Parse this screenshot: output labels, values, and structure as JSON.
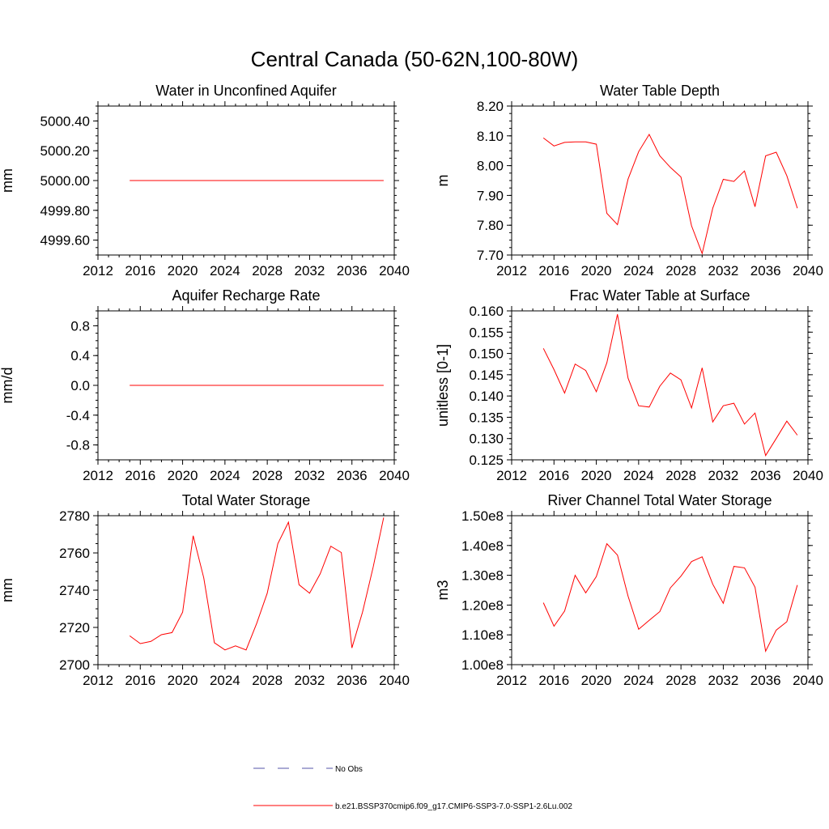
{
  "figure_title": "Central Canada (50-62N,100-80W)",
  "legend": {
    "obs_label": "No Obs",
    "model_label": "b.e21.BSSP370cmip6.f09_g17.CMIP6-SSP3-7.0-SSP1-2.6Lu.002",
    "obs_color": "#5555aa",
    "model_color": "#ff0000"
  },
  "chart_data": [
    {
      "type": "line",
      "title": "Water in Unconfined Aquifer",
      "ylabel": "mm",
      "xlim": [
        2012,
        2040
      ],
      "xticks": [
        2012,
        2016,
        2020,
        2024,
        2028,
        2032,
        2036,
        2040
      ],
      "ylim": [
        4999.5,
        5000.5
      ],
      "yticks": [
        4999.6,
        4999.8,
        5000.0,
        5000.2,
        5000.4
      ],
      "ytick_labels": [
        "4999.60",
        "4999.80",
        "5000.00",
        "5000.20",
        "5000.40"
      ],
      "x": [
        2015,
        2016,
        2017,
        2018,
        2019,
        2020,
        2021,
        2022,
        2023,
        2024,
        2025,
        2026,
        2027,
        2028,
        2029,
        2030,
        2031,
        2032,
        2033,
        2034,
        2035,
        2036,
        2037,
        2038,
        2039
      ],
      "series": [
        {
          "values": [
            5000,
            5000,
            5000,
            5000,
            5000,
            5000,
            5000,
            5000,
            5000,
            5000,
            5000,
            5000,
            5000,
            5000,
            5000,
            5000,
            5000,
            5000,
            5000,
            5000,
            5000,
            5000,
            5000,
            5000,
            5000
          ]
        }
      ]
    },
    {
      "type": "line",
      "title": "Water Table Depth",
      "ylabel": "m",
      "xlim": [
        2012,
        2040
      ],
      "xticks": [
        2012,
        2016,
        2020,
        2024,
        2028,
        2032,
        2036,
        2040
      ],
      "ylim": [
        7.7,
        8.2
      ],
      "yticks": [
        7.7,
        7.8,
        7.9,
        8.0,
        8.1,
        8.2
      ],
      "ytick_labels": [
        "7.70",
        "7.80",
        "7.90",
        "8.00",
        "8.10",
        "8.20"
      ],
      "x": [
        2015,
        2016,
        2017,
        2018,
        2019,
        2020,
        2021,
        2022,
        2023,
        2024,
        2025,
        2026,
        2027,
        2028,
        2029,
        2030,
        2031,
        2032,
        2033,
        2034,
        2035,
        2036,
        2037,
        2038,
        2039
      ],
      "series": [
        {
          "values": [
            8.093,
            8.066,
            8.078,
            8.08,
            8.08,
            8.072,
            7.84,
            7.802,
            7.955,
            8.047,
            8.105,
            8.033,
            7.994,
            7.962,
            7.798,
            7.705,
            7.857,
            7.954,
            7.947,
            7.982,
            7.862,
            8.033,
            8.045,
            7.966,
            7.857
          ]
        }
      ]
    },
    {
      "type": "line",
      "title": "Aquifer Recharge Rate",
      "ylabel": "mm/d",
      "xlim": [
        2012,
        2040
      ],
      "xticks": [
        2012,
        2016,
        2020,
        2024,
        2028,
        2032,
        2036,
        2040
      ],
      "ylim": [
        -1.0,
        1.0
      ],
      "yticks": [
        -0.8,
        -0.4,
        0.0,
        0.4,
        0.8
      ],
      "ytick_labels": [
        "-0.8",
        "-0.4",
        "0.0",
        "0.4",
        "0.8"
      ],
      "x": [
        2015,
        2016,
        2017,
        2018,
        2019,
        2020,
        2021,
        2022,
        2023,
        2024,
        2025,
        2026,
        2027,
        2028,
        2029,
        2030,
        2031,
        2032,
        2033,
        2034,
        2035,
        2036,
        2037,
        2038,
        2039
      ],
      "series": [
        {
          "values": [
            0,
            0,
            0,
            0,
            0,
            0,
            0,
            0,
            0,
            0,
            0,
            0,
            0,
            0,
            0,
            0,
            0,
            0,
            0,
            0,
            0,
            0,
            0,
            0,
            0
          ]
        }
      ]
    },
    {
      "type": "line",
      "title": "Frac Water Table at Surface",
      "ylabel": "unitless [0-1]",
      "xlim": [
        2012,
        2040
      ],
      "xticks": [
        2012,
        2016,
        2020,
        2024,
        2028,
        2032,
        2036,
        2040
      ],
      "ylim": [
        0.125,
        0.16
      ],
      "yticks": [
        0.125,
        0.13,
        0.135,
        0.14,
        0.145,
        0.15,
        0.155,
        0.16
      ],
      "ytick_labels": [
        "0.125",
        "0.130",
        "0.135",
        "0.140",
        "0.145",
        "0.150",
        "0.155",
        "0.160"
      ],
      "x": [
        2015,
        2016,
        2017,
        2018,
        2019,
        2020,
        2021,
        2022,
        2023,
        2024,
        2025,
        2026,
        2027,
        2028,
        2029,
        2030,
        2031,
        2032,
        2033,
        2034,
        2035,
        2036,
        2037,
        2038,
        2039
      ],
      "series": [
        {
          "values": [
            0.1512,
            0.1462,
            0.1407,
            0.1475,
            0.146,
            0.141,
            0.1478,
            0.1592,
            0.1442,
            0.1377,
            0.1374,
            0.1423,
            0.1454,
            0.1438,
            0.1372,
            0.1466,
            0.1339,
            0.1377,
            0.1383,
            0.1334,
            0.136,
            0.126,
            0.13,
            0.1341,
            0.1308
          ]
        }
      ]
    },
    {
      "type": "line",
      "title": "Total Water Storage",
      "ylabel": "mm",
      "xlim": [
        2012,
        2040
      ],
      "xticks": [
        2012,
        2016,
        2020,
        2024,
        2028,
        2032,
        2036,
        2040
      ],
      "ylim": [
        2700,
        2780
      ],
      "yticks": [
        2700,
        2720,
        2740,
        2760,
        2780
      ],
      "ytick_labels": [
        "2700",
        "2720",
        "2740",
        "2760",
        "2780"
      ],
      "x": [
        2015,
        2016,
        2017,
        2018,
        2019,
        2020,
        2021,
        2022,
        2023,
        2024,
        2025,
        2026,
        2027,
        2028,
        2029,
        2030,
        2031,
        2032,
        2033,
        2034,
        2035,
        2036,
        2037,
        2038,
        2039
      ],
      "series": [
        {
          "values": [
            2715.5,
            2711.3,
            2712.5,
            2716.1,
            2717.2,
            2728.2,
            2769.2,
            2746.6,
            2711.8,
            2707.9,
            2710.1,
            2707.9,
            2722.2,
            2738.4,
            2765.0,
            2776.5,
            2742.9,
            2738.4,
            2748.8,
            2763.6,
            2760.2,
            2709.0,
            2728.2,
            2752.3,
            2779.0
          ]
        }
      ]
    },
    {
      "type": "line",
      "title": "River Channel Total Water Storage",
      "ylabel": "m3",
      "xlim": [
        2012,
        2040
      ],
      "xticks": [
        2012,
        2016,
        2020,
        2024,
        2028,
        2032,
        2036,
        2040
      ],
      "ylim": [
        100000000,
        150000000
      ],
      "yticks": [
        100000000,
        110000000,
        120000000,
        130000000,
        140000000,
        150000000
      ],
      "ytick_labels": [
        "1.00e8",
        "1.10e8",
        "1.20e8",
        "1.30e8",
        "1.40e8",
        "1.50e8"
      ],
      "x": [
        2015,
        2016,
        2017,
        2018,
        2019,
        2020,
        2021,
        2022,
        2023,
        2024,
        2025,
        2026,
        2027,
        2028,
        2029,
        2030,
        2031,
        2032,
        2033,
        2034,
        2035,
        2036,
        2037,
        2038,
        2039
      ],
      "series": [
        {
          "values": [
            120800000,
            112900000,
            118000000,
            130000000,
            124100000,
            129600000,
            140600000,
            136800000,
            123000000,
            111900000,
            114900000,
            117800000,
            125800000,
            129700000,
            134600000,
            136200000,
            127000000,
            120600000,
            133000000,
            132500000,
            126000000,
            104500000,
            111600000,
            114400000,
            126700000
          ]
        }
      ]
    }
  ]
}
